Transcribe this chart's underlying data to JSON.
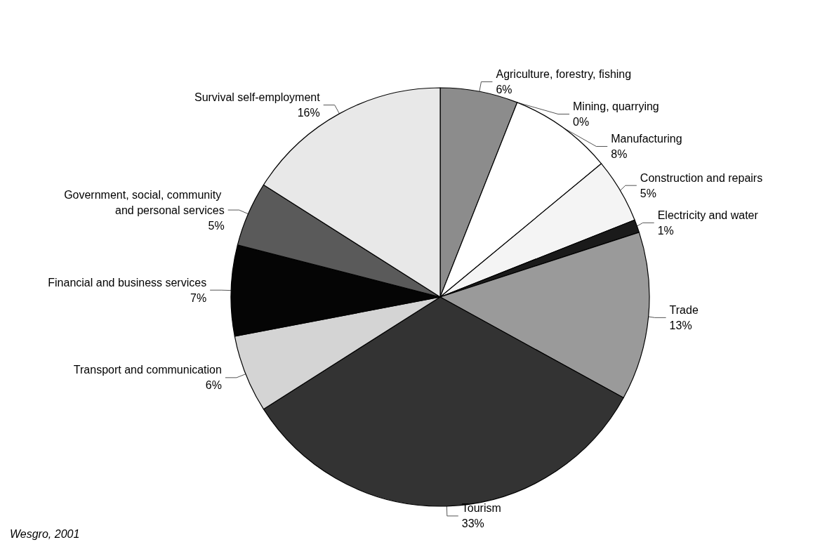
{
  "chart_data": {
    "type": "pie",
    "categories": [
      "Agriculture, forestry, fishing",
      "Mining, quarrying",
      "Manufacturing",
      "Construction and repairs",
      "Electricity and water",
      "Trade",
      "Tourism",
      "Transport and communication",
      "Financial and business services",
      "Government, social, community and personal services",
      "Survival self-employment"
    ],
    "values": [
      6,
      0,
      8,
      5,
      1,
      13,
      33,
      6,
      7,
      5,
      16
    ],
    "colors": [
      "#8c8c8c",
      "#ffffff",
      "#ffffff",
      "#f4f4f4",
      "#1a1a1a",
      "#9a9a9a",
      "#333333",
      "#d4d4d4",
      "#050505",
      "#5a5a5a",
      "#e8e8e8"
    ],
    "value_labels": [
      "6%",
      "0%",
      "8%",
      "5%",
      "1%",
      "13%",
      "33%",
      "6%",
      "7%",
      "5%",
      "16%"
    ],
    "annotations": [
      "Wesgro, 2001"
    ]
  }
}
